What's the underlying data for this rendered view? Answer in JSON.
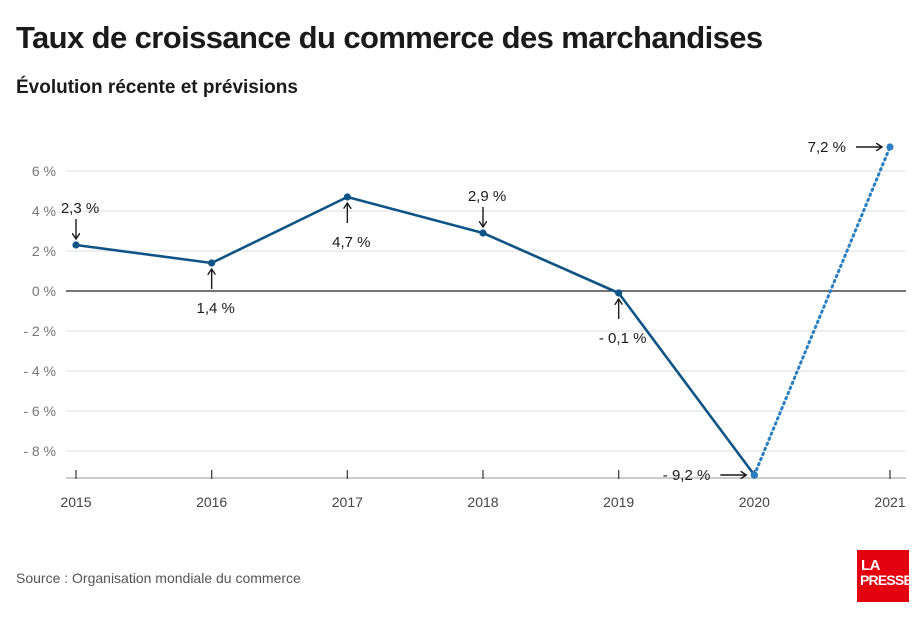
{
  "header": {
    "title": "Taux de croissance du commerce des marchandises",
    "subtitle": "Évolution récente et prévisions"
  },
  "footer": {
    "source": "Source : Organisation mondiale du commerce",
    "logo_line1": "LA",
    "logo_line2": "PRESSE"
  },
  "colors": {
    "line": "#0f5486",
    "forecast": "#2a7fc2",
    "grid": "#dddddd",
    "zero_line": "#222222",
    "logo_bg": "#e3000f"
  },
  "chart_data": {
    "type": "line",
    "title": "Taux de croissance du commerce des marchandises",
    "subtitle": "Évolution récente et prévisions",
    "xlabel": "",
    "ylabel": "",
    "x": [
      "2015",
      "2016",
      "2017",
      "2018",
      "2019",
      "2020",
      "2021"
    ],
    "series": [
      {
        "style": "solid",
        "x": [
          "2015",
          "2016",
          "2017",
          "2018",
          "2019",
          "2020"
        ],
        "values": [
          2.3,
          1.4,
          4.7,
          2.9,
          -0.1,
          -9.2
        ]
      },
      {
        "style": "dotted",
        "x": [
          "2020",
          "2021"
        ],
        "values": [
          -9.2,
          7.2
        ]
      }
    ],
    "yticks": [
      6,
      4,
      2,
      0,
      -2,
      -4,
      -6,
      -8
    ],
    "ytick_labels": [
      "6 %",
      "4 %",
      "2 %",
      "0 %",
      "- 2 %",
      "- 4 %",
      "- 6 %",
      "- 8 %"
    ],
    "ylim": [
      -9.2,
      7.2
    ],
    "grid": true,
    "annotations": [
      {
        "x": "2015",
        "text": "2,3 %",
        "arrow": "down",
        "position": "above"
      },
      {
        "x": "2016",
        "text": "1,4 %",
        "arrow": "up",
        "position": "below"
      },
      {
        "x": "2017",
        "text": "4,7 %",
        "arrow": "up",
        "position": "below"
      },
      {
        "x": "2018",
        "text": "2,9 %",
        "arrow": "down",
        "position": "above"
      },
      {
        "x": "2019",
        "text": "- 0,1 %",
        "arrow": "up",
        "position": "below"
      },
      {
        "x": "2020",
        "text": "- 9,2 %",
        "arrow": "right",
        "position": "left"
      },
      {
        "x": "2021",
        "text": "7,2 %",
        "arrow": "right",
        "position": "left"
      }
    ]
  }
}
